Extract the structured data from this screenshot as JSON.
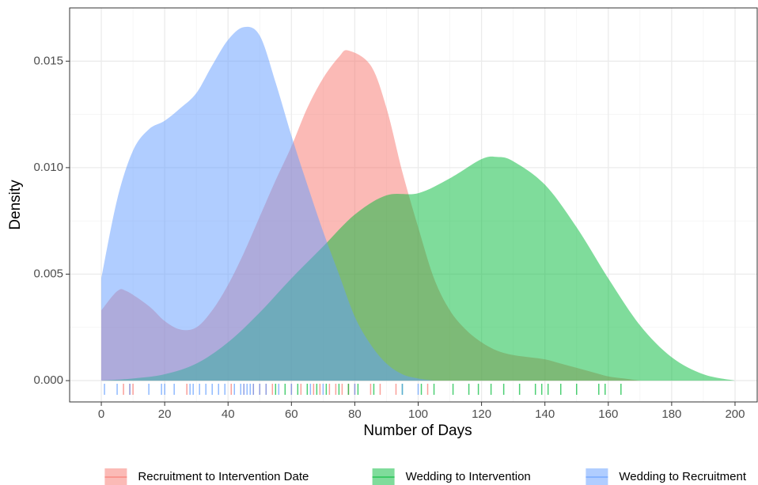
{
  "chart_data": {
    "type": "density",
    "x_label": "Number of Days",
    "y_label": "Density",
    "xlim": [
      -10,
      207
    ],
    "ylim": [
      -0.001,
      0.0175
    ],
    "xticks": [
      0,
      20,
      40,
      60,
      80,
      100,
      120,
      140,
      160,
      180,
      200
    ],
    "yticks": [
      {
        "value": 0,
        "label": "0.000"
      },
      0.005,
      {
        "value": 0.01,
        "label": "0.010"
      },
      0.015
    ],
    "grid": true,
    "legend": "bottom",
    "series": [
      {
        "name": "Recruitment to Intervention Date",
        "color": "#F8766D",
        "x": [
          0,
          5,
          8,
          15,
          20,
          25,
          30,
          35,
          40,
          45,
          50,
          55,
          60,
          65,
          70,
          75,
          78,
          85,
          90,
          95,
          100,
          105,
          110,
          115,
          120,
          125,
          130,
          135,
          140,
          145,
          150,
          155,
          160,
          165,
          170
        ],
        "values": [
          0.0033,
          0.0042,
          0.0042,
          0.0035,
          0.0028,
          0.0024,
          0.0025,
          0.0033,
          0.0045,
          0.006,
          0.0077,
          0.0094,
          0.011,
          0.0128,
          0.0142,
          0.0152,
          0.0155,
          0.0148,
          0.0128,
          0.0098,
          0.0072,
          0.0048,
          0.0033,
          0.0024,
          0.0018,
          0.0014,
          0.0012,
          0.0011,
          0.001,
          0.0008,
          0.0006,
          0.0004,
          0.0002,
          0.0001,
          0
        ],
        "rug": [
          7,
          9,
          10,
          27,
          41,
          45,
          48,
          50,
          52,
          54,
          60,
          63,
          67,
          69,
          72,
          74,
          76,
          78,
          80,
          85,
          88,
          93,
          103
        ]
      },
      {
        "name": "Wedding to Intervention",
        "color": "#00BA38",
        "x": [
          0,
          10,
          20,
          30,
          40,
          50,
          60,
          70,
          80,
          90,
          100,
          110,
          120,
          125,
          130,
          140,
          150,
          160,
          170,
          180,
          190,
          200
        ],
        "values": [
          0,
          0.0001,
          0.0003,
          0.0008,
          0.0018,
          0.0032,
          0.0048,
          0.0063,
          0.0078,
          0.0087,
          0.0088,
          0.0095,
          0.0104,
          0.0105,
          0.0103,
          0.0092,
          0.0072,
          0.0048,
          0.0026,
          0.0011,
          0.0003,
          0
        ],
        "rug": [
          55,
          58,
          62,
          65,
          68,
          71,
          75,
          78,
          81,
          86,
          95,
          101,
          105,
          111,
          116,
          119,
          123,
          127,
          132,
          137,
          139,
          141,
          145,
          150,
          157,
          159,
          164
        ]
      },
      {
        "name": "Wedding to Recruitment",
        "color": "#619CFF",
        "x": [
          0,
          5,
          10,
          15,
          20,
          25,
          30,
          35,
          40,
          45,
          50,
          55,
          60,
          65,
          70,
          75,
          80,
          85,
          90,
          95,
          100,
          105
        ],
        "values": [
          0.0048,
          0.0085,
          0.0108,
          0.0118,
          0.0122,
          0.0128,
          0.0135,
          0.0148,
          0.016,
          0.0166,
          0.0162,
          0.014,
          0.0115,
          0.0092,
          0.007,
          0.005,
          0.003,
          0.0017,
          0.0008,
          0.0003,
          0.0001,
          0
        ],
        "rug": [
          1,
          5,
          9,
          15,
          19,
          20,
          23,
          28,
          29,
          31,
          33,
          35,
          37,
          39,
          42,
          44,
          45,
          46,
          47,
          48,
          50,
          52,
          56,
          60,
          66,
          70,
          80,
          95,
          100
        ]
      }
    ]
  }
}
